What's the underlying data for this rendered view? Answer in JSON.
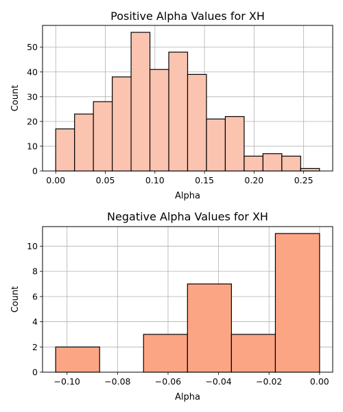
{
  "chart_data": [
    {
      "type": "bar",
      "title": "Positive Alpha Values for XH",
      "xlabel": "Alpha",
      "ylabel": "Count",
      "bin_edges": [
        0.0,
        0.019,
        0.038,
        0.057,
        0.076,
        0.095,
        0.114,
        0.133,
        0.152,
        0.171,
        0.19,
        0.209,
        0.228,
        0.247,
        0.266
      ],
      "values": [
        17,
        23,
        28,
        38,
        56,
        41,
        48,
        39,
        21,
        22,
        6,
        7,
        6,
        1
      ],
      "xlim": [
        -0.0133,
        0.2793
      ],
      "ylim": [
        0,
        58.8
      ],
      "xticks": [
        0.0,
        0.05,
        0.1,
        0.15,
        0.2,
        0.25
      ],
      "xtick_labels": [
        "0.00",
        "0.05",
        "0.10",
        "0.15",
        "0.20",
        "0.25"
      ],
      "yticks": [
        0,
        10,
        20,
        30,
        40,
        50
      ],
      "ytick_labels": [
        "0",
        "10",
        "20",
        "30",
        "40",
        "50"
      ],
      "grid": true,
      "bar_color": "#fbc4b0",
      "edge_color": "#000000"
    },
    {
      "type": "bar",
      "title": "Negative Alpha Values for XH",
      "xlabel": "Alpha",
      "ylabel": "Count",
      "bin_edges": [
        -0.1045,
        -0.0871,
        -0.0697,
        -0.0523,
        -0.0349,
        -0.0175,
        0.0
      ],
      "values": [
        2,
        0,
        3,
        7,
        3,
        11
      ],
      "xlim": [
        -0.1097,
        0.0052
      ],
      "ylim": [
        0,
        11.55
      ],
      "xticks": [
        -0.1,
        -0.08,
        -0.06,
        -0.04,
        -0.02,
        0.0
      ],
      "xtick_labels": [
        "−0.10",
        "−0.08",
        "−0.06",
        "−0.04",
        "−0.02",
        "0.00"
      ],
      "yticks": [
        0,
        2,
        4,
        6,
        8,
        10
      ],
      "ytick_labels": [
        "0",
        "2",
        "4",
        "6",
        "8",
        "10"
      ],
      "grid": true,
      "bar_color": "#fca584",
      "edge_color": "#000000"
    }
  ]
}
